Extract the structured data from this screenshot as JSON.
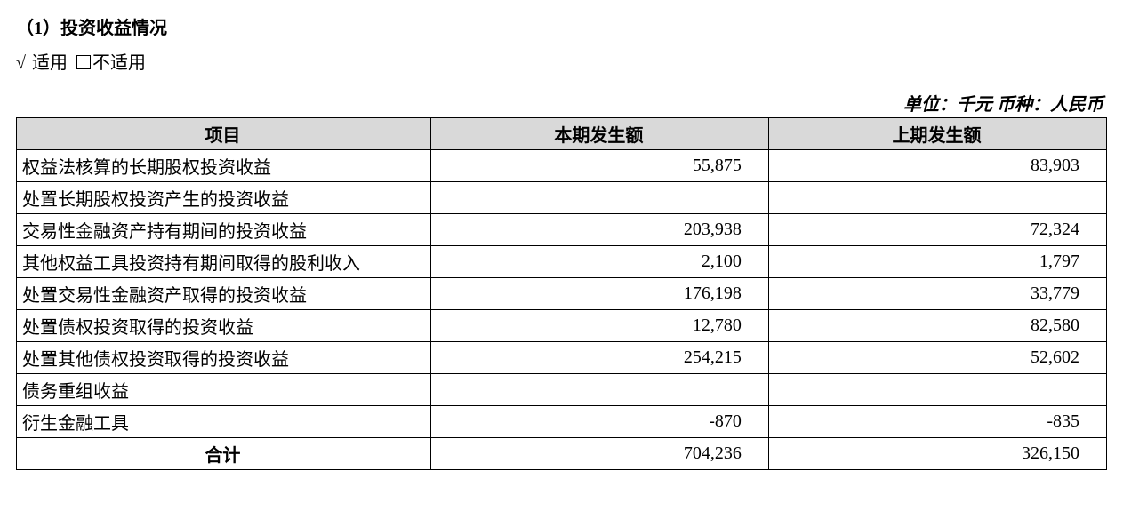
{
  "section_title": "（1）投资收益情况",
  "applicable": {
    "check_mark": "√",
    "applicable_label": "适用",
    "not_applicable_label": "不适用"
  },
  "unit_line": "单位：千元   币种：人民币",
  "table": {
    "headers": [
      "项目",
      "本期发生额",
      "上期发生额"
    ],
    "rows": [
      {
        "item": "权益法核算的长期股权投资收益",
        "current": "55,875",
        "prior": "83,903"
      },
      {
        "item": "处置长期股权投资产生的投资收益",
        "current": "",
        "prior": ""
      },
      {
        "item": "交易性金融资产持有期间的投资收益",
        "current": "203,938",
        "prior": "72,324"
      },
      {
        "item": "其他权益工具投资持有期间取得的股利收入",
        "current": "2,100",
        "prior": "1,797"
      },
      {
        "item": "处置交易性金融资产取得的投资收益",
        "current": "176,198",
        "prior": "33,779"
      },
      {
        "item": "处置债权投资取得的投资收益",
        "current": "12,780",
        "prior": "82,580"
      },
      {
        "item": "处置其他债权投资取得的投资收益",
        "current": "254,215",
        "prior": "52,602"
      },
      {
        "item": "债务重组收益",
        "current": "",
        "prior": ""
      },
      {
        "item": "衍生金融工具",
        "current": "-870",
        "prior": "-835"
      }
    ],
    "total": {
      "label": "合计",
      "current": "704,236",
      "prior": "326,150"
    }
  }
}
